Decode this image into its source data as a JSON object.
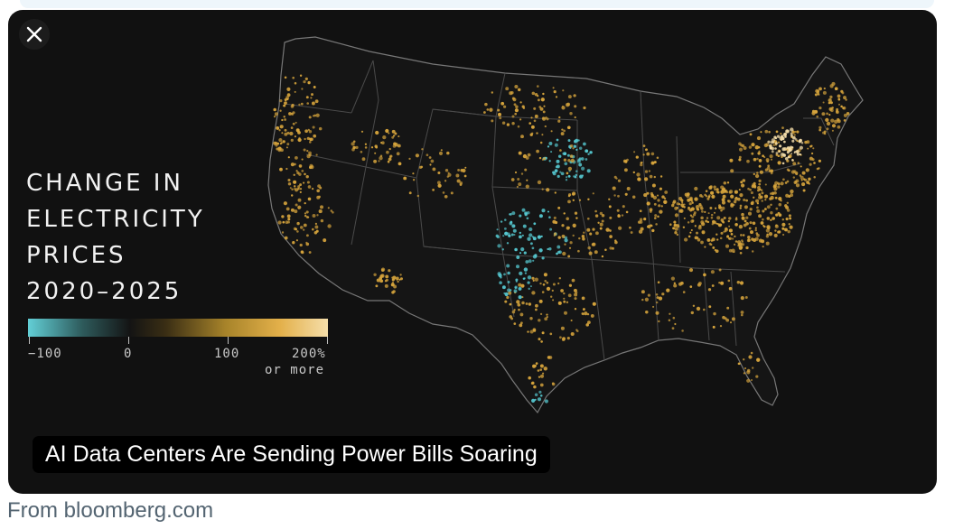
{
  "close_icon": "close-icon",
  "chart": {
    "title_lines": [
      "CHANGE IN",
      "ELECTRICITY",
      "PRICES",
      "2020–2025"
    ],
    "legend": {
      "colors": [
        "#62cfd6",
        "#141414",
        "#e3b04a",
        "#f5deaa"
      ],
      "labels": [
        "−100",
        "0",
        "100",
        "200%",
        "or more"
      ]
    }
  },
  "caption": "AI Data Centers Are Sending Power Bills Soaring",
  "source": "From bloomberg.com",
  "colors": {
    "card_bg": "#111111",
    "gold": "#d6a43c",
    "cyan": "#55c7cf",
    "pale": "#f5deaa",
    "source_text": "#536471"
  }
}
